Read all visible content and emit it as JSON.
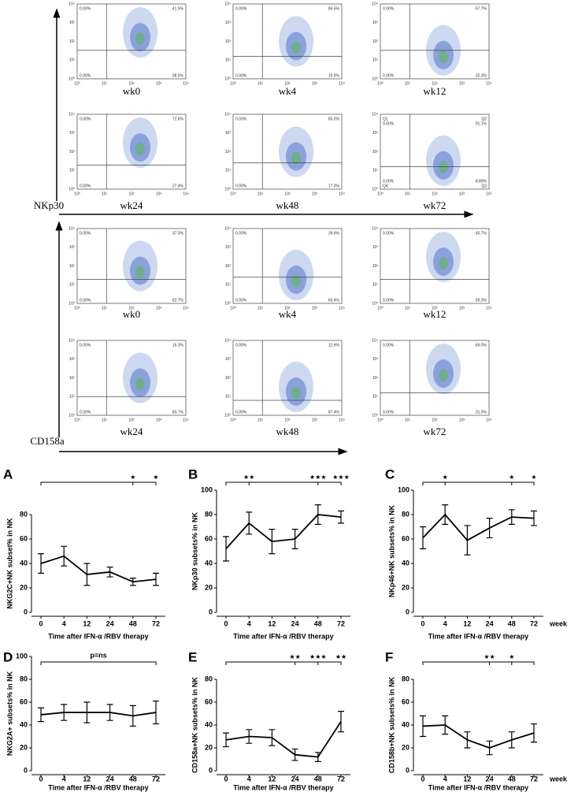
{
  "flow_panels": [
    {
      "axis_label": "NKp30",
      "log_ticks": [
        "10⁰",
        "10¹",
        "10²",
        "10³",
        "10⁴"
      ],
      "plots": [
        {
          "label": "wk0",
          "quadrants": [
            "0.00%",
            "41.5%",
            "0.00%",
            "58.5%"
          ]
        },
        {
          "label": "wk4",
          "quadrants": [
            "0.00%",
            "84.5%",
            "0.00%",
            "15.5%"
          ]
        },
        {
          "label": "wk12",
          "quadrants": [
            "0.00%",
            "67.7%",
            "0.00%",
            "32.3%"
          ]
        },
        {
          "label": "wk24",
          "quadrants": [
            "0.00%",
            "72.6%",
            "0.00%",
            "27.4%"
          ]
        },
        {
          "label": "wk48",
          "quadrants": [
            "0.00%",
            "83.0%",
            "0.00%",
            "17.0%"
          ]
        },
        {
          "label": "wk72",
          "quadrants": [
            "0.00%",
            "91.1%",
            "0.00%",
            "8.89%"
          ],
          "quadrant_names": [
            "Q1",
            "Q2",
            "Q4",
            "Q3"
          ]
        }
      ]
    },
    {
      "axis_label": "CD158a",
      "log_ticks": [
        "10⁰",
        "10¹",
        "10²",
        "10³",
        "10⁴"
      ],
      "plots": [
        {
          "label": "wk0",
          "quadrants": [
            "0.00%",
            "37.3%",
            "0.00%",
            "62.7%"
          ]
        },
        {
          "label": "wk4",
          "quadrants": [
            "0.00%",
            "39.6%",
            "0.00%",
            "60.4%"
          ]
        },
        {
          "label": "wk12",
          "quadrants": [
            "0.00%",
            "40.7%",
            "0.00%",
            "59.3%"
          ]
        },
        {
          "label": "wk24",
          "quadrants": [
            "0.00%",
            "16.3%",
            "0.00%",
            "83.7%"
          ]
        },
        {
          "label": "wk48",
          "quadrants": [
            "0.00%",
            "12.6%",
            "0.00%",
            "87.4%"
          ]
        },
        {
          "label": "wk72",
          "quadrants": [
            "0.00%",
            "69.0%",
            "0.00%",
            "31.0%"
          ]
        }
      ]
    }
  ],
  "chart_data": [
    {
      "type": "line",
      "panel": "A",
      "y_label": "NKG2C+NK subset% in NK",
      "x_label": "Time after IFN-α /RBV therapy",
      "categories": [
        "0",
        "4",
        "12",
        "24",
        "48",
        "72"
      ],
      "values": [
        40,
        46,
        31,
        33,
        25,
        27
      ],
      "errors": [
        8,
        8,
        9,
        4,
        3,
        5
      ],
      "ylim": [
        0,
        80
      ],
      "yticks": [
        0,
        20,
        40,
        60,
        80
      ],
      "color": "#000000",
      "significance": [
        {
          "at": "48",
          "text": "★"
        },
        {
          "at": "72",
          "text": "★"
        }
      ]
    },
    {
      "type": "line",
      "panel": "B",
      "y_label": "NKp30 subsets% in NK",
      "x_label": "Time after IFN-α /RBV therapy",
      "categories": [
        "0",
        "4",
        "12",
        "24",
        "48",
        "72"
      ],
      "values": [
        52,
        73,
        58,
        60,
        80,
        78
      ],
      "errors": [
        10,
        9,
        10,
        8,
        8,
        5
      ],
      "ylim": [
        0,
        100
      ],
      "yticks": [
        0,
        20,
        40,
        60,
        80,
        100
      ],
      "color": "#000000",
      "significance": [
        {
          "at": "4",
          "text": "★★"
        },
        {
          "at": "48",
          "text": "★★★"
        },
        {
          "at": "72",
          "text": "★★★"
        }
      ]
    },
    {
      "type": "line",
      "panel": "C",
      "y_label": "NKp46+NK subsets% in NK",
      "x_label": "Time after IFN-α /RBV therapy",
      "x_unit": "week",
      "categories": [
        "0",
        "4",
        "12",
        "24",
        "48",
        "72"
      ],
      "values": [
        61,
        80,
        59,
        69,
        78,
        77
      ],
      "errors": [
        9,
        8,
        12,
        8,
        6,
        6
      ],
      "ylim": [
        0,
        100
      ],
      "yticks": [
        0,
        20,
        40,
        60,
        80,
        100
      ],
      "color": "#000000",
      "significance": [
        {
          "at": "4",
          "text": "★"
        },
        {
          "at": "48",
          "text": "★"
        },
        {
          "at": "72",
          "text": "★"
        }
      ]
    },
    {
      "type": "line",
      "panel": "D",
      "y_label": "NKG2A+ subsets% in NK",
      "x_label": "Time after IFN-α /RBV therapy",
      "categories": [
        "0",
        "4",
        "12",
        "24",
        "48",
        "72"
      ],
      "values": [
        49,
        51,
        51,
        51,
        48,
        51
      ],
      "errors": [
        6,
        7,
        9,
        7,
        9,
        10
      ],
      "ylim": [
        0,
        100
      ],
      "yticks": [
        0,
        20,
        40,
        60,
        80,
        100
      ],
      "color": "#000000",
      "bracket_label": "p=ns"
    },
    {
      "type": "line",
      "panel": "E",
      "y_label": "CD158a+NK subsets% in NK",
      "x_label": "Time after IFN-α /RBV therapy",
      "categories": [
        "0",
        "4",
        "12",
        "24",
        "48",
        "72"
      ],
      "values": [
        27,
        30,
        29,
        14,
        12,
        43
      ],
      "errors": [
        6,
        6,
        7,
        5,
        4,
        9
      ],
      "ylim": [
        0,
        80
      ],
      "yticks": [
        0,
        20,
        40,
        60,
        80
      ],
      "color": "#000000",
      "significance": [
        {
          "at": "24",
          "text": "★★"
        },
        {
          "at": "48",
          "text": "★★★"
        },
        {
          "at": "72",
          "text": "★★"
        }
      ]
    },
    {
      "type": "line",
      "panel": "F",
      "y_label": "CD158b+NK subsets% in NK",
      "x_label": "Time after IFN-α /RBV therapy",
      "x_unit": "week",
      "categories": [
        "0",
        "4",
        "12",
        "24",
        "48",
        "72"
      ],
      "values": [
        39,
        40,
        27,
        20,
        27,
        33
      ],
      "errors": [
        9,
        8,
        7,
        6,
        7,
        8
      ],
      "ylim": [
        0,
        80
      ],
      "yticks": [
        0,
        20,
        40,
        60,
        80
      ],
      "color": "#000000",
      "significance": [
        {
          "at": "24",
          "text": "★★"
        },
        {
          "at": "48",
          "text": "★"
        }
      ]
    }
  ]
}
